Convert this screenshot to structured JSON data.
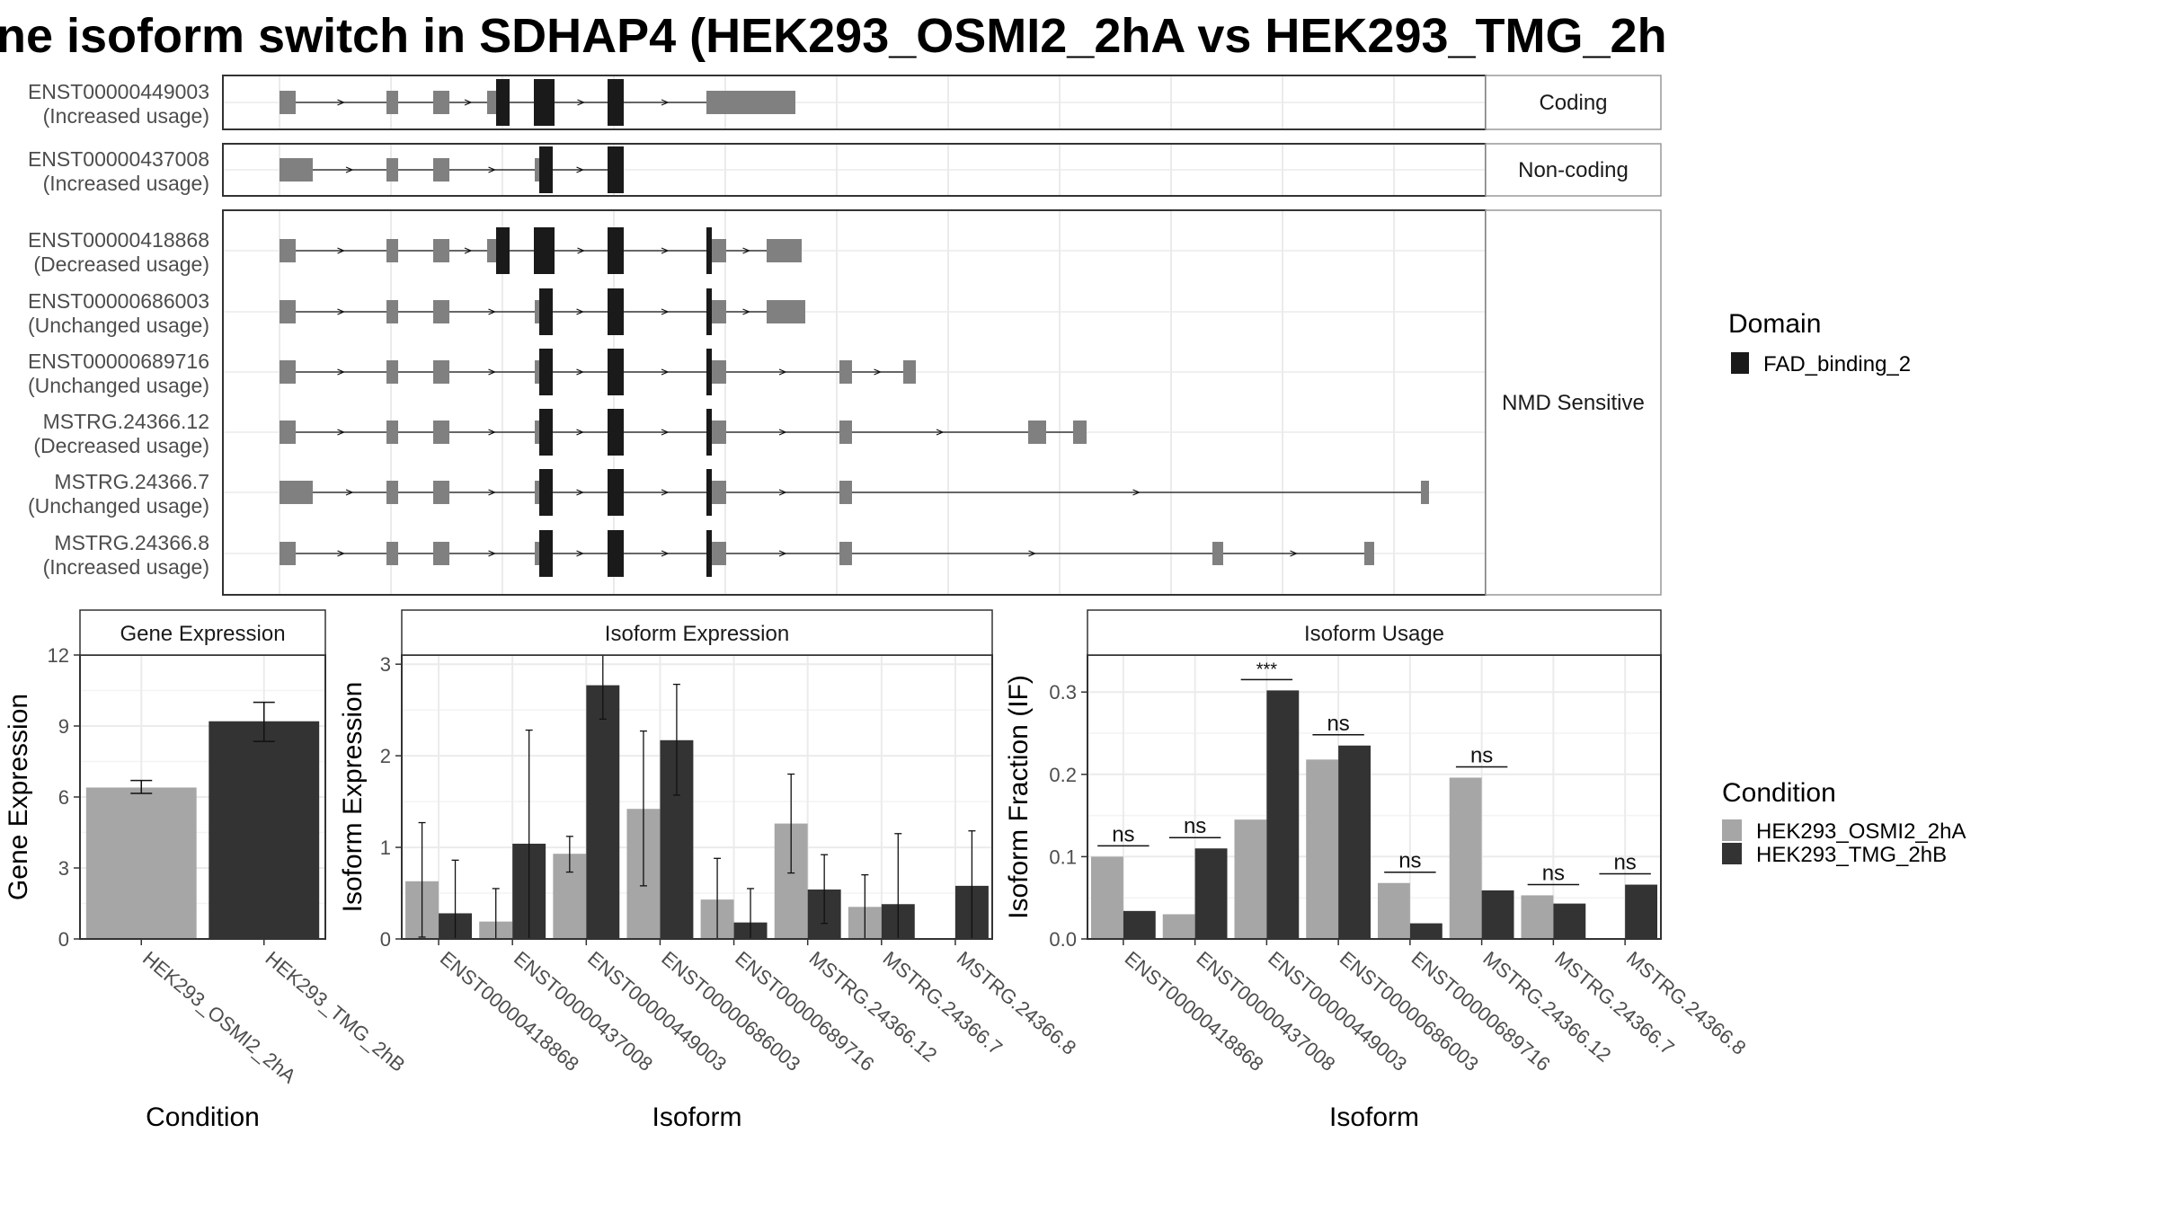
{
  "title": "ne isoform switch in SDHAP4 (HEK293_OSMI2_2hA vs HEK293_TMG_2h",
  "colors": {
    "exon": "#808080",
    "domain": "#1a1a1a",
    "cond1": "#a6a6a6",
    "cond2": "#333333",
    "panel_border": "#333333",
    "strip_border": "#999999",
    "grid": "#ebebeb"
  },
  "transcript_panels": [
    {
      "label": "Coding",
      "rows": [
        {
          "id": "ENST00000449003",
          "usage": "(Increased usage)"
        }
      ]
    },
    {
      "label": "Non-coding",
      "rows": [
        {
          "id": "ENST00000437008",
          "usage": "(Increased usage)"
        }
      ]
    },
    {
      "label": "NMD Sensitive",
      "rows": [
        {
          "id": "ENST00000418868",
          "usage": "(Decreased usage)"
        },
        {
          "id": "ENST00000686003",
          "usage": "(Unchanged usage)"
        },
        {
          "id": "ENST00000689716",
          "usage": "(Unchanged usage)"
        },
        {
          "id": "MSTRG.24366.12",
          "usage": "(Decreased usage)"
        },
        {
          "id": "MSTRG.24366.7",
          "usage": "(Unchanged usage)"
        },
        {
          "id": "MSTRG.24366.8",
          "usage": "(Increased usage)"
        }
      ]
    }
  ],
  "domain_legend": {
    "title": "Domain",
    "items": [
      {
        "label": "FAD_binding_2"
      }
    ]
  },
  "condition_legend": {
    "title": "Condition",
    "items": [
      {
        "label": "HEK293_OSMI2_2hA"
      },
      {
        "label": "HEK293_TMG_2hB"
      }
    ]
  },
  "chart_data": [
    {
      "type": "bar",
      "title": "Gene Expression",
      "xlabel": "Condition",
      "ylabel": "Gene Expression",
      "ylim": [
        0,
        12
      ],
      "yticks": [
        "0",
        "3",
        "6",
        "9",
        "12"
      ],
      "categories": [
        "HEK293_OSMI2_2hA",
        "HEK293_TMG_2hB"
      ],
      "values": [
        6.4,
        9.2
      ],
      "err_low": [
        6.15,
        8.35
      ],
      "err_high": [
        6.7,
        10.0
      ]
    },
    {
      "type": "bar",
      "title": "Isoform Expression",
      "xlabel": "Isoform",
      "ylabel": "Isoform Expression",
      "ylim": [
        0,
        3.1
      ],
      "yticks": [
        "0",
        "1",
        "2",
        "3"
      ],
      "categories": [
        "ENST00000418868",
        "ENST00000437008",
        "ENST00000449003",
        "ENST00000686003",
        "ENST00000689716",
        "MSTRG.24366.12",
        "MSTRG.24366.7",
        "MSTRG.24366.8"
      ],
      "series": [
        {
          "name": "HEK293_OSMI2_2hA",
          "values": [
            0.63,
            0.19,
            0.93,
            1.42,
            0.43,
            1.26,
            0.35,
            0.01
          ],
          "err_low": [
            0.02,
            0.0,
            0.73,
            0.58,
            0.0,
            0.72,
            0.0,
            0.0
          ],
          "err_high": [
            1.27,
            0.55,
            1.12,
            2.27,
            0.88,
            1.8,
            0.7,
            0.0
          ]
        },
        {
          "name": "HEK293_TMG_2hB",
          "values": [
            0.28,
            1.04,
            2.77,
            2.17,
            0.18,
            0.54,
            0.38,
            0.58
          ],
          "err_low": [
            0.0,
            0.0,
            2.4,
            1.57,
            0.0,
            0.17,
            0.0,
            0.0
          ],
          "err_high": [
            0.86,
            2.28,
            3.13,
            2.78,
            0.55,
            0.92,
            1.15,
            1.18
          ]
        }
      ]
    },
    {
      "type": "bar",
      "title": "Isoform Usage",
      "xlabel": "Isoform",
      "ylabel": "Isoform Fraction (IF)",
      "ylim": [
        0,
        0.345
      ],
      "yticks": [
        "0.0",
        "0.1",
        "0.2",
        "0.3"
      ],
      "categories": [
        "ENST00000418868",
        "ENST00000437008",
        "ENST00000449003",
        "ENST00000686003",
        "ENST00000689716",
        "MSTRG.24366.12",
        "MSTRG.24366.7",
        "MSTRG.24366.8"
      ],
      "series": [
        {
          "name": "HEK293_OSMI2_2hA",
          "values": [
            0.1,
            0.03,
            0.145,
            0.218,
            0.068,
            0.196,
            0.053,
            0.0
          ]
        },
        {
          "name": "HEK293_TMG_2hB",
          "values": [
            0.034,
            0.11,
            0.302,
            0.235,
            0.019,
            0.059,
            0.043,
            0.066
          ]
        }
      ],
      "annotations": [
        "ns",
        "ns",
        "***",
        "ns",
        "ns",
        "ns",
        "ns",
        "ns"
      ]
    }
  ]
}
